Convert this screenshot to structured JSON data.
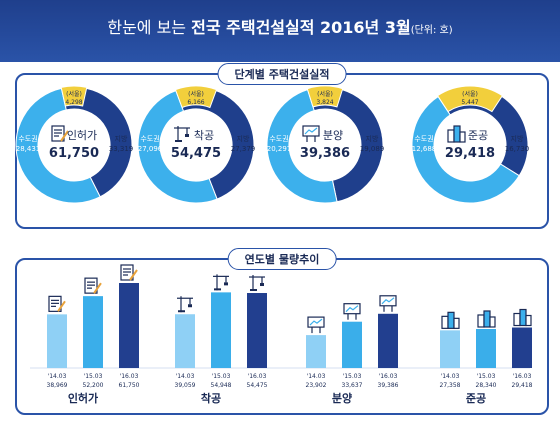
{
  "header": {
    "title_part1": "한눈에 보는 ",
    "title_part2": "전국 주택건설실적 2016년 3월",
    "unit": "(단위: 호)"
  },
  "colors": {
    "banner": "#2a53a8",
    "capital": "#1f3f8c",
    "local": "#3cb0ec",
    "seoul": "#f2cf3c",
    "bar_14": "#8fd0f5",
    "bar_15": "#3aaeea",
    "bar_16": "#223f8f"
  },
  "stage_panel": {
    "label": "단계별 주택건설실적"
  },
  "trend_panel": {
    "label": "연도별 물량추이"
  },
  "chart_data": [
    {
      "type": "pie",
      "title": "단계별 주택건설실적",
      "donuts": [
        {
          "name": "인허가",
          "total": "61,750",
          "capital_label": "수도권",
          "capital": 28431,
          "capital_text": "28,431",
          "local_label": "지방",
          "local": 33319,
          "local_text": "33,319",
          "seoul_label": "(서울)",
          "seoul": 4298,
          "seoul_text": "4,298",
          "icon": "permit-document-icon"
        },
        {
          "name": "착공",
          "total": "54,475",
          "capital_label": "수도권",
          "capital": 27096,
          "capital_text": "27,096",
          "local_label": "지방",
          "local": 27379,
          "local_text": "27,379",
          "seoul_label": "(서울)",
          "seoul": 6166,
          "seoul_text": "6,166",
          "icon": "crane-icon"
        },
        {
          "name": "분양",
          "total": "39,386",
          "capital_label": "수도권",
          "capital": 20297,
          "capital_text": "20,297",
          "local_label": "지방",
          "local": 19089,
          "local_text": "19,089",
          "seoul_label": "(서울)",
          "seoul": 3824,
          "seoul_text": "3,824",
          "icon": "billboard-icon"
        },
        {
          "name": "준공",
          "total": "29,418",
          "capital_label": "수도권",
          "capital": 12688,
          "capital_text": "12,688",
          "local_label": "지방",
          "local": 16730,
          "local_text": "16,730",
          "seoul_label": "(서울)",
          "seoul": 5447,
          "seoul_text": "5,447",
          "icon": "buildings-icon"
        }
      ]
    },
    {
      "type": "bar",
      "title": "연도별 물량추이",
      "categories": [
        "'14.03",
        "'15.03",
        "'16.03"
      ],
      "groups": [
        {
          "name": "인허가",
          "values": [
            38969,
            52200,
            61750
          ],
          "value_labels": [
            "38,969",
            "52,200",
            "61,750"
          ],
          "icon": "permit-document-icon"
        },
        {
          "name": "착공",
          "values": [
            39059,
            54948,
            54475
          ],
          "value_labels": [
            "39,059",
            "54,948",
            "54,475"
          ],
          "icon": "crane-icon"
        },
        {
          "name": "분양",
          "values": [
            23902,
            33637,
            39386
          ],
          "value_labels": [
            "23,902",
            "33,637",
            "39,386"
          ],
          "icon": "billboard-icon"
        },
        {
          "name": "준공",
          "values": [
            27358,
            28340,
            29418
          ],
          "value_labels": [
            "27,358",
            "28,340",
            "29,418"
          ],
          "icon": "buildings-icon"
        }
      ]
    }
  ]
}
